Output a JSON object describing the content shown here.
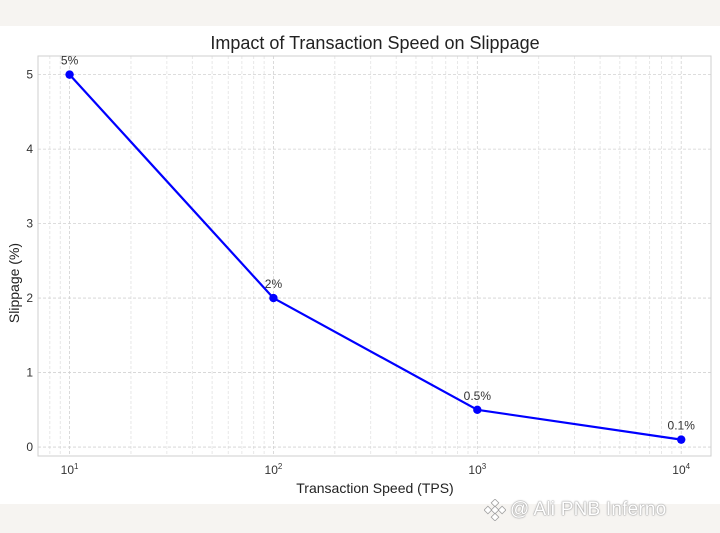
{
  "chart_data": {
    "type": "line",
    "title": "Impact of Transaction Speed on Slippage",
    "xlabel": "Transaction Speed (TPS)",
    "ylabel": "Slippage (%)",
    "x_scale": "log",
    "x": [
      10,
      100,
      1000,
      10000
    ],
    "x_ticks": [
      {
        "base": "10",
        "exp": "1"
      },
      {
        "base": "10",
        "exp": "2"
      },
      {
        "base": "10",
        "exp": "3"
      },
      {
        "base": "10",
        "exp": "4"
      }
    ],
    "y_ticks": [
      "0",
      "1",
      "2",
      "3",
      "4",
      "5"
    ],
    "xlim": [
      7,
      14000
    ],
    "ylim": [
      -0.12,
      5.25
    ],
    "grid": true,
    "series": [
      {
        "values": [
          5,
          2,
          0.5,
          0.1
        ],
        "labels": [
          "5%",
          "2%",
          "0.5%",
          "0.1%"
        ],
        "color": "#0000ff"
      }
    ]
  },
  "watermark": {
    "at": "@",
    "text": "Ali PNB Inferno",
    "icon": "binance-logo-icon"
  }
}
